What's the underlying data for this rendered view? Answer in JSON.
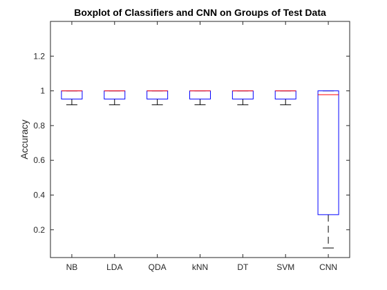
{
  "chart_data": {
    "type": "boxplot",
    "title": "Boxplot of Classifiers and CNN on Groups of Test Data",
    "xlabel": "",
    "ylabel": "Accuracy",
    "ylim": [
      0.04,
      1.4
    ],
    "yticks": [
      0.2,
      0.4,
      0.6,
      0.8,
      1,
      1.2
    ],
    "ytick_labels": [
      "0.2",
      "0.4",
      "0.6",
      "0.8",
      "1",
      "1.2"
    ],
    "categories": [
      "NB",
      "LDA",
      "QDA",
      "kNN",
      "DT",
      "SVM",
      "CNN"
    ],
    "boxes": [
      {
        "category": "NB",
        "lower_whisker": 0.92,
        "q1": 0.953,
        "median": 1.0,
        "q3": 1.0,
        "upper_whisker": 1.0
      },
      {
        "category": "LDA",
        "lower_whisker": 0.92,
        "q1": 0.953,
        "median": 1.0,
        "q3": 1.0,
        "upper_whisker": 1.0
      },
      {
        "category": "QDA",
        "lower_whisker": 0.92,
        "q1": 0.953,
        "median": 1.0,
        "q3": 1.0,
        "upper_whisker": 1.0
      },
      {
        "category": "kNN",
        "lower_whisker": 0.92,
        "q1": 0.953,
        "median": 1.0,
        "q3": 1.0,
        "upper_whisker": 1.0
      },
      {
        "category": "DT",
        "lower_whisker": 0.92,
        "q1": 0.953,
        "median": 1.0,
        "q3": 1.0,
        "upper_whisker": 1.0
      },
      {
        "category": "SVM",
        "lower_whisker": 0.92,
        "q1": 0.953,
        "median": 1.0,
        "q3": 1.0,
        "upper_whisker": 1.0
      },
      {
        "category": "CNN",
        "lower_whisker": 0.095,
        "q1": 0.287,
        "median": 0.978,
        "q3": 1.0,
        "upper_whisker": 1.0
      }
    ],
    "grid": false,
    "legend": "none",
    "colors": {
      "box": "#0000ff",
      "median": "#ff0000",
      "whisker": "#000000",
      "axis": "#262626"
    }
  }
}
